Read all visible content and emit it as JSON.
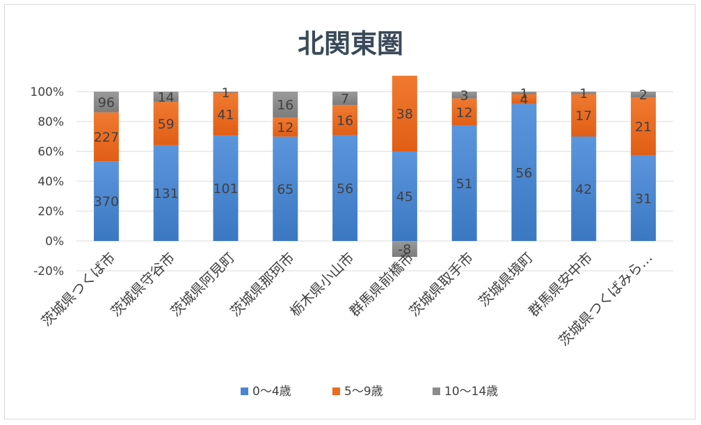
{
  "chart_data": {
    "type": "bar",
    "stacked": "percent",
    "title": "北関東圏",
    "categories": [
      "茨城県つくば市",
      "茨城県守谷市",
      "茨城県阿見町",
      "茨城県那珂市",
      "栃木県小山市",
      "群馬県前橋市",
      "茨城県取手市",
      "茨城県境町",
      "群馬県安中市",
      "茨城県つくばみら…"
    ],
    "series": [
      {
        "name": "0〜4歳",
        "color": "#4a86cf",
        "values": [
          370,
          131,
          101,
          65,
          56,
          45,
          51,
          56,
          42,
          31
        ]
      },
      {
        "name": "5〜9歳",
        "color": "#ec6b22",
        "values": [
          227,
          59,
          41,
          12,
          16,
          38,
          12,
          4,
          17,
          21
        ]
      },
      {
        "name": "10〜14歳",
        "color": "#8c8c8c",
        "values": [
          96,
          14,
          1,
          16,
          7,
          -8,
          3,
          1,
          1,
          2
        ]
      }
    ],
    "ylim": [
      -0.2,
      1.0
    ],
    "yticks": [
      -0.2,
      0,
      0.2,
      0.4,
      0.6,
      0.8,
      1.0
    ],
    "ytick_labels": [
      "-20%",
      "0%",
      "20%",
      "40%",
      "60%",
      "80%",
      "100%"
    ],
    "grid": true,
    "legend_position": "bottom",
    "xlabel": "",
    "ylabel": ""
  }
}
